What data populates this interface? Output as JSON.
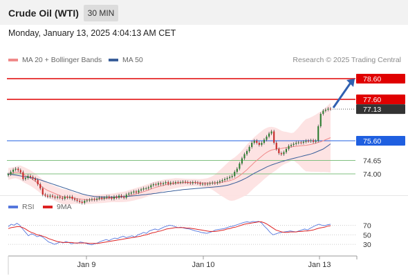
{
  "header": {
    "title": "Crude Oil (WTI)",
    "timeframe": "30 MIN",
    "datetime": "Monday, January 13, 2025 4:04:13 AM CET"
  },
  "legend": {
    "ma20_bollinger": "MA 20 + Bollinger Bands",
    "ma50": "MA 50",
    "credit": "Research © 2025 Trading Central"
  },
  "rsi_legend": {
    "rsi": "RSI",
    "ma9": "9MA"
  },
  "colors": {
    "resistance": "#e00000",
    "support_blue": "#1f5fe0",
    "support_green": "#7fc07f",
    "last_price": "#333333",
    "bull_candle": "#2e7d32",
    "bear_candle": "#c62828",
    "ma20": "#f08a8a",
    "ma50": "#3a5f9a",
    "bollinger_fill": "#fde0e0",
    "rsi_line": "#5577dd",
    "rsi_ma": "#dd2222",
    "arrow": "#3060b0"
  },
  "chart_data": [
    {
      "type": "candlestick",
      "ylim": [
        73.0,
        79.2
      ],
      "x_ticks": [
        "Jan 9",
        "Jan 10",
        "Jan 13"
      ],
      "levels": [
        {
          "label": "78.60",
          "value": 78.6,
          "kind": "resistance"
        },
        {
          "label": "77.60",
          "value": 77.6,
          "kind": "resistance"
        },
        {
          "label": "77.13",
          "value": 77.13,
          "kind": "last"
        },
        {
          "label": "75.60",
          "value": 75.6,
          "kind": "support_blue"
        },
        {
          "label": "74.65",
          "value": 74.65,
          "kind": "support_green"
        },
        {
          "label": "74.00",
          "value": 74.0,
          "kind": "support_green"
        }
      ],
      "closes": [
        73.98,
        74.1,
        74.2,
        74.25,
        74.18,
        74.08,
        73.75,
        73.8,
        73.9,
        73.85,
        73.78,
        73.7,
        73.5,
        73.3,
        73.0,
        72.95,
        72.9,
        72.95,
        72.9,
        72.85,
        72.9,
        72.85,
        72.8,
        72.9,
        72.85,
        72.9,
        72.8,
        72.75,
        72.7,
        72.65,
        72.6,
        72.7,
        72.72,
        72.75,
        72.78,
        72.75,
        72.8,
        72.85,
        72.8,
        72.85,
        72.9,
        72.85,
        72.8,
        72.9,
        72.85,
        72.95,
        72.9,
        72.85,
        73.0,
        73.05,
        73.1,
        73.15,
        73.1,
        73.2,
        73.25,
        73.3,
        73.3,
        73.35,
        73.45,
        73.5,
        73.48,
        73.55,
        73.5,
        73.55,
        73.6,
        73.52,
        73.58,
        73.55,
        73.6,
        73.58,
        73.6,
        73.62,
        73.6,
        73.58,
        73.55,
        73.6,
        73.58,
        73.55,
        73.5,
        73.52,
        73.5,
        73.52,
        73.55,
        73.58,
        73.55,
        73.6,
        73.65,
        73.7,
        73.75,
        73.8,
        73.85,
        73.9,
        74.1,
        74.25,
        74.5,
        74.75,
        74.95,
        75.1,
        75.3,
        75.5,
        75.6,
        75.5,
        75.4,
        75.5,
        75.65,
        75.8,
        75.95,
        76.05,
        75.5,
        75.2,
        75.0,
        74.95,
        75.05,
        75.2,
        75.35,
        75.4,
        75.45,
        75.5,
        75.52,
        75.5,
        75.55,
        75.6,
        75.58,
        75.62,
        75.55,
        75.6,
        76.3,
        76.9,
        77.05,
        77.1,
        77.15,
        77.13
      ],
      "ma20": [
        74.0,
        74.02,
        74.05,
        74.07,
        74.08,
        74.05,
        73.98,
        73.92,
        73.86,
        73.8,
        73.72,
        73.64,
        73.55,
        73.45,
        73.35,
        73.27,
        73.2,
        73.15,
        73.1,
        73.05,
        73.0,
        72.95,
        72.91,
        72.89,
        72.87,
        72.86,
        72.84,
        72.82,
        72.8,
        72.79,
        72.77,
        72.76,
        72.75,
        72.75,
        72.76,
        72.77,
        72.78,
        72.79,
        72.8,
        72.81,
        72.82,
        72.83,
        72.84,
        72.85,
        72.86,
        72.87,
        72.88,
        72.89,
        72.91,
        72.94,
        72.97,
        73.0,
        73.03,
        73.07,
        73.1,
        73.14,
        73.18,
        73.22,
        73.27,
        73.31,
        73.35,
        73.38,
        73.41,
        73.44,
        73.47,
        73.49,
        73.51,
        73.53,
        73.55,
        73.56,
        73.57,
        73.57,
        73.58,
        73.58,
        73.58,
        73.58,
        73.58,
        73.57,
        73.57,
        73.56,
        73.56,
        73.56,
        73.56,
        73.56,
        73.56,
        73.57,
        73.58,
        73.6,
        73.62,
        73.64,
        73.67,
        73.71,
        73.76,
        73.83,
        73.91,
        74.0,
        74.1,
        74.2,
        74.32,
        74.43,
        74.55,
        74.65,
        74.75,
        74.85,
        74.95,
        75.03,
        75.1,
        75.15,
        75.18,
        75.2,
        75.22,
        75.23,
        75.25,
        75.27,
        75.28,
        75.3,
        75.32,
        75.33,
        75.35,
        75.36,
        75.37,
        75.38,
        75.4,
        75.42,
        75.45,
        75.48,
        75.52,
        75.55,
        75.6,
        75.65,
        75.7,
        75.75
      ],
      "ma50": [
        74.0,
        73.98,
        73.96,
        73.94,
        73.92,
        73.9,
        73.88,
        73.86,
        73.84,
        73.82,
        73.8,
        73.77,
        73.74,
        73.71,
        73.67,
        73.63,
        73.59,
        73.55,
        73.51,
        73.47,
        73.43,
        73.39,
        73.35,
        73.31,
        73.27,
        73.23,
        73.19,
        73.15,
        73.11,
        73.07,
        73.03,
        73.0,
        72.97,
        72.95,
        72.93,
        72.91,
        72.9,
        72.89,
        72.88,
        72.88,
        72.88,
        72.88,
        72.88,
        72.88,
        72.89,
        72.89,
        72.9,
        72.9,
        72.91,
        72.92,
        72.93,
        72.94,
        72.95,
        72.96,
        72.98,
        72.99,
        73.0,
        73.02,
        73.03,
        73.05,
        73.06,
        73.08,
        73.1,
        73.11,
        73.13,
        73.15,
        73.16,
        73.18,
        73.19,
        73.21,
        73.22,
        73.24,
        73.25,
        73.26,
        73.27,
        73.28,
        73.29,
        73.3,
        73.31,
        73.32,
        73.33,
        73.34,
        73.35,
        73.36,
        73.37,
        73.38,
        73.39,
        73.41,
        73.43,
        73.45,
        73.48,
        73.52,
        73.56,
        73.6,
        73.65,
        73.7,
        73.76,
        73.82,
        73.89,
        73.96,
        74.03,
        74.09,
        74.15,
        74.21,
        74.27,
        74.33,
        74.38,
        74.43,
        74.47,
        74.51,
        74.55,
        74.59,
        74.62,
        74.66,
        74.69,
        74.72,
        74.75,
        74.78,
        74.81,
        74.84,
        74.87,
        74.9,
        74.93,
        74.96,
        75.0,
        75.05,
        75.1,
        75.15,
        75.2,
        75.28,
        75.36,
        75.45
      ]
    },
    {
      "type": "line",
      "y_ticks": [
        70,
        50,
        30
      ],
      "ylim": [
        10,
        85
      ],
      "series": [
        {
          "name": "RSI",
          "values": [
            67,
            72,
            70,
            74,
            70,
            62,
            55,
            48,
            52,
            50,
            46,
            48,
            45,
            40,
            35,
            33,
            30,
            32,
            35,
            33,
            36,
            34,
            31,
            33,
            32,
            35,
            34,
            32,
            30,
            29,
            31,
            33,
            36,
            38,
            40,
            38,
            41,
            43,
            42,
            45,
            47,
            44,
            46,
            48,
            45,
            50,
            52,
            55,
            53,
            58,
            60,
            62,
            60,
            63,
            66,
            68,
            70,
            69,
            67,
            65,
            66,
            64,
            63,
            62,
            60,
            58,
            57,
            55,
            54,
            53,
            55,
            57,
            60,
            61,
            62,
            63,
            65,
            67,
            68,
            70,
            72,
            74,
            76,
            77,
            76,
            78,
            77,
            78,
            75,
            68,
            62,
            55,
            50,
            52,
            54,
            55,
            56,
            57,
            58,
            57,
            56,
            58,
            60,
            62,
            60,
            64,
            67,
            70,
            72,
            70,
            69,
            71,
            72
          ]
        },
        {
          "name": "9MA",
          "values": [
            63,
            65,
            66,
            67,
            67,
            65,
            62,
            58,
            55,
            53,
            50,
            49,
            47,
            45,
            42,
            40,
            38,
            36,
            35,
            34,
            34,
            34,
            34,
            33,
            33,
            33,
            33,
            33,
            32,
            32,
            32,
            32,
            33,
            34,
            35,
            36,
            37,
            38,
            39,
            40,
            41,
            42,
            43,
            44,
            45,
            46,
            47,
            49,
            50,
            52,
            54,
            55,
            57,
            58,
            60,
            62,
            63,
            64,
            65,
            65,
            65,
            65,
            64,
            64,
            63,
            62,
            61,
            60,
            59,
            58,
            57,
            57,
            57,
            58,
            59,
            60,
            62,
            63,
            65,
            66,
            68,
            70,
            72,
            73,
            74,
            75,
            76,
            77,
            77,
            75,
            72,
            68,
            64,
            60,
            58,
            56,
            55,
            55,
            56,
            56,
            56,
            57,
            57,
            58,
            58,
            59,
            60,
            62,
            64,
            65,
            66,
            68,
            69
          ]
        }
      ]
    }
  ]
}
